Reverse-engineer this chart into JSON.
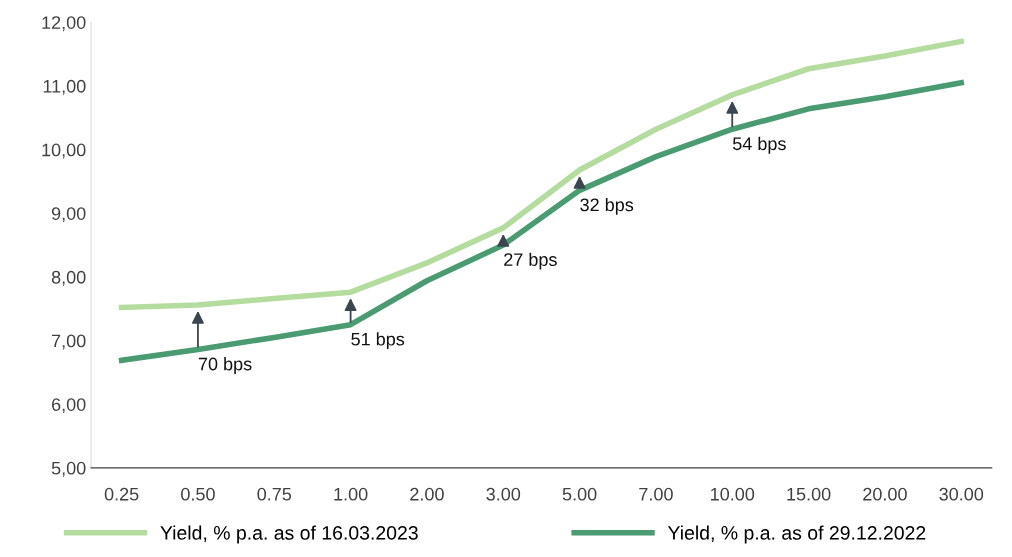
{
  "chart_data": {
    "type": "line",
    "categories": [
      "0.25",
      "0.50",
      "0.75",
      "1.00",
      "2.00",
      "3.00",
      "5.00",
      "7.00",
      "10.00",
      "15.00",
      "20.00",
      "30.00"
    ],
    "series": [
      {
        "name": "Yield, % p.a. as of 16.03.2023",
        "color": "#b5dc9f",
        "values": [
          7.52,
          7.56,
          7.66,
          7.76,
          8.22,
          8.77,
          9.68,
          10.32,
          10.86,
          11.27,
          11.47,
          11.7
        ]
      },
      {
        "name": "Yield, % p.a. as of 29.12.2022",
        "color": "#4a9b72",
        "values": [
          6.69,
          6.86,
          7.05,
          7.25,
          7.94,
          8.5,
          9.36,
          9.89,
          10.32,
          10.64,
          10.83,
          11.05
        ]
      }
    ],
    "ylim": [
      5,
      12
    ],
    "yticks": [
      {
        "value": 5,
        "label": "5,00"
      },
      {
        "value": 6,
        "label": "6,00"
      },
      {
        "value": 7,
        "label": "7,00"
      },
      {
        "value": 8,
        "label": "8,00"
      },
      {
        "value": 9,
        "label": "9,00"
      },
      {
        "value": 10,
        "label": "10,00"
      },
      {
        "value": 11,
        "label": "11,00"
      },
      {
        "value": 12,
        "label": "12,00"
      }
    ],
    "annotations": [
      {
        "text": "70 bps",
        "x": "0.50",
        "y": 6.86
      },
      {
        "text": "51 bps",
        "x": "1.00",
        "y": 7.25
      },
      {
        "text": "27 bps",
        "x": "3.00",
        "y": 8.5
      },
      {
        "text": "32 bps",
        "x": "5.00",
        "y": 9.36
      },
      {
        "text": "54 bps",
        "x": "10.00",
        "y": 10.32
      }
    ],
    "grid": false,
    "legend": "bottom",
    "marker": "none",
    "line_style": "solid"
  }
}
